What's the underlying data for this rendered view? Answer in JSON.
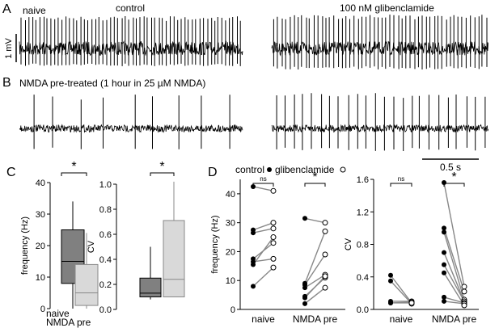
{
  "panels": {
    "A": "A",
    "B": "B",
    "C": "C",
    "D": "D"
  },
  "traces": {
    "row_a_label": "naive",
    "control_label": "control",
    "glib_label": "100 nM glibenclamide",
    "row_b_label": "NMDA pre-treated (1 hour in 25 µM NMDA)",
    "v_scale": "1 mV",
    "t_scale": "0.5 s"
  },
  "chart_data": [
    {
      "type": "box",
      "panel": "C-left",
      "ylabel": "frequency (Hz)",
      "ylim": [
        0,
        40
      ],
      "yticks": [
        "0",
        "10",
        "20",
        "30",
        "40"
      ],
      "significance": "*",
      "legend": [
        "naive",
        "NMDA pre"
      ],
      "colors": {
        "naive": "#808080",
        "nmda": "#d9d9d9"
      },
      "boxes": [
        {
          "name": "naive",
          "min": 0,
          "q1": 8,
          "median": 15,
          "q3": 25,
          "max": 34
        },
        {
          "name": "NMDA pre",
          "min": 0,
          "q1": 1,
          "median": 5,
          "q3": 14,
          "max": 24
        }
      ]
    },
    {
      "type": "box",
      "panel": "C-right",
      "ylabel": "CV",
      "ylim": [
        0,
        1.0
      ],
      "yticks": [
        "0.0",
        "0.2",
        "0.4",
        "0.6",
        "0.8",
        "1.0"
      ],
      "significance": "*",
      "boxes": [
        {
          "name": "naive",
          "min": 0.08,
          "q1": 0.1,
          "median": 0.13,
          "q3": 0.25,
          "max": 0.5
        },
        {
          "name": "NMDA pre",
          "min": 0.1,
          "q1": 0.1,
          "median": 0.24,
          "q3": 0.71,
          "max": 1.02
        }
      ]
    },
    {
      "type": "paired-scatter",
      "panel": "D-left",
      "ylabel": "frequency (Hz)",
      "ylim": [
        0,
        45
      ],
      "yticks": [
        "0",
        "10",
        "20",
        "30",
        "40"
      ],
      "categories": [
        "naive",
        "NMDA pre"
      ],
      "legend": {
        "control": "control",
        "glib": "glibenclamide"
      },
      "significance": [
        "ns",
        "*"
      ],
      "groups": [
        {
          "name": "naive",
          "pairs": [
            [
              42.5,
              41
            ],
            [
              27.5,
              30
            ],
            [
              26.5,
              28
            ],
            [
              17.5,
              23
            ],
            [
              16.5,
              17.5
            ],
            [
              15.5,
              25
            ],
            [
              8,
              14.5
            ]
          ]
        },
        {
          "name": "NMDA pre",
          "pairs": [
            [
              31.5,
              30
            ],
            [
              9,
              27
            ],
            [
              8.5,
              19
            ],
            [
              7.5,
              12
            ],
            [
              4.5,
              11
            ],
            [
              4,
              11.5
            ],
            [
              2,
              7.5
            ]
          ]
        }
      ]
    },
    {
      "type": "paired-scatter",
      "panel": "D-right",
      "ylabel": "CV",
      "ylim": [
        0,
        1.6
      ],
      "yticks": [
        "0.0",
        "0.4",
        "0.8",
        "1.2",
        "1.6"
      ],
      "categories": [
        "naive",
        "NMDA pre"
      ],
      "significance": [
        "ns",
        "*"
      ],
      "groups": [
        {
          "name": "naive",
          "pairs": [
            [
              0.42,
              0.08
            ],
            [
              0.35,
              0.07
            ],
            [
              0.1,
              0.1
            ],
            [
              0.08,
              0.09
            ],
            [
              0.08,
              0.08
            ]
          ]
        },
        {
          "name": "NMDA pre",
          "pairs": [
            [
              1.56,
              0.28
            ],
            [
              1.0,
              0.22
            ],
            [
              0.95,
              0.12
            ],
            [
              0.7,
              0.1
            ],
            [
              0.55,
              0.1
            ],
            [
              0.15,
              0.08
            ],
            [
              0.1,
              0.07
            ],
            [
              0.45,
              0.05
            ]
          ]
        }
      ]
    }
  ]
}
